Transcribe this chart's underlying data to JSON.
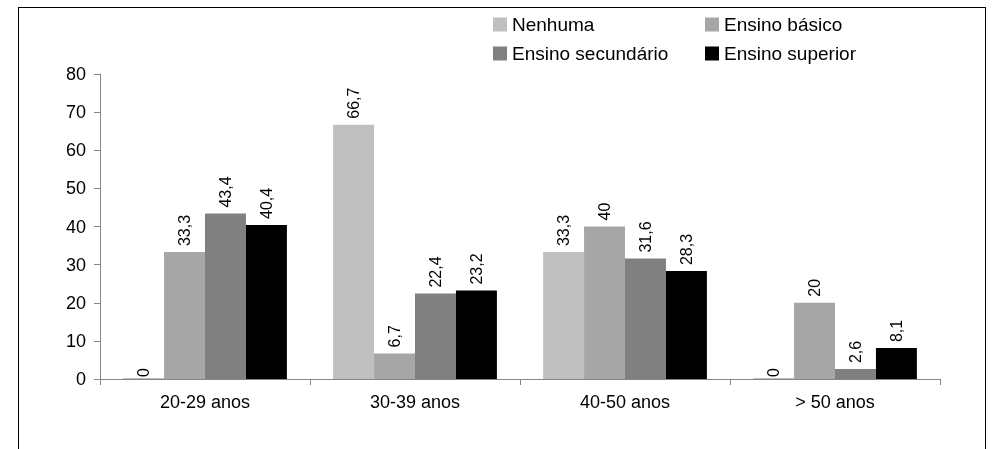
{
  "chart_data": {
    "type": "bar",
    "categories": [
      "20-29 anos",
      "30-39 anos",
      "40-50 anos",
      "> 50 anos"
    ],
    "series": [
      {
        "name": "Nenhuma",
        "color": "#c0c0c0",
        "values": [
          0,
          66.7,
          33.3,
          0
        ],
        "value_labels": [
          "0",
          "66,7",
          "33,3",
          "0"
        ]
      },
      {
        "name": "Ensino básico",
        "color": "#a6a6a6",
        "values": [
          33.3,
          6.7,
          40,
          20
        ],
        "value_labels": [
          "33,3",
          "6,7",
          "40",
          "20"
        ]
      },
      {
        "name": "Ensino secundário",
        "color": "#808080",
        "values": [
          43.4,
          22.4,
          31.6,
          2.6
        ],
        "value_labels": [
          "43,4",
          "22,4",
          "31,6",
          "2,6"
        ]
      },
      {
        "name": "Ensino superior",
        "color": "#000000",
        "values": [
          40.4,
          23.2,
          28.3,
          8.1
        ],
        "value_labels": [
          "40,4",
          "23,2",
          "28,3",
          "8,1"
        ]
      }
    ],
    "ylim": [
      0,
      80
    ],
    "yticks": [
      0,
      10,
      20,
      30,
      40,
      50,
      60,
      70,
      80
    ],
    "grid": false,
    "legend": "top right"
  }
}
